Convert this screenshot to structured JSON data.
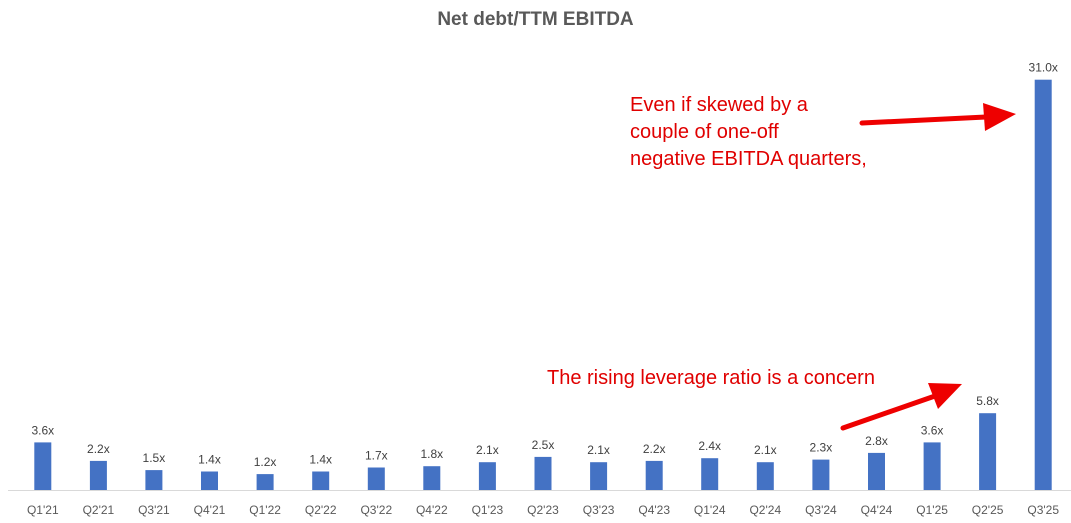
{
  "chart_data": {
    "type": "bar",
    "title": "Net debt/TTM EBITDA",
    "categories": [
      "Q1'21",
      "Q2'21",
      "Q3'21",
      "Q4'21",
      "Q1'22",
      "Q2'22",
      "Q3'22",
      "Q4'22",
      "Q1'23",
      "Q2'23",
      "Q3'23",
      "Q4'23",
      "Q1'24",
      "Q2'24",
      "Q3'24",
      "Q4'24",
      "Q1'25",
      "Q2'25",
      "Q3'25"
    ],
    "values": [
      3.6,
      2.2,
      1.5,
      1.4,
      1.2,
      1.4,
      1.7,
      1.8,
      2.1,
      2.5,
      2.1,
      2.2,
      2.4,
      2.1,
      2.3,
      2.8,
      3.6,
      5.8,
      31.0
    ],
    "data_labels": [
      "3.6x",
      "2.2x",
      "1.5x",
      "1.4x",
      "1.2x",
      "1.4x",
      "1.7x",
      "1.8x",
      "2.1x",
      "2.5x",
      "2.1x",
      "2.2x",
      "2.4x",
      "2.1x",
      "2.3x",
      "2.8x",
      "3.6x",
      "5.8x",
      "31.0x"
    ],
    "ylim": [
      0,
      34
    ],
    "grid": false,
    "legend": "none",
    "bar_color": "#4472C4",
    "annotations": [
      {
        "id": "top",
        "lines": [
          "Even if skewed by a",
          "couple of one-off",
          "negative EBITDA quarters,"
        ],
        "color": "#E00000",
        "points_to": "Q3'25"
      },
      {
        "id": "bottom",
        "lines": [
          "The rising leverage ratio is a concern"
        ],
        "color": "#E00000",
        "points_to": "Q2'25"
      }
    ]
  }
}
